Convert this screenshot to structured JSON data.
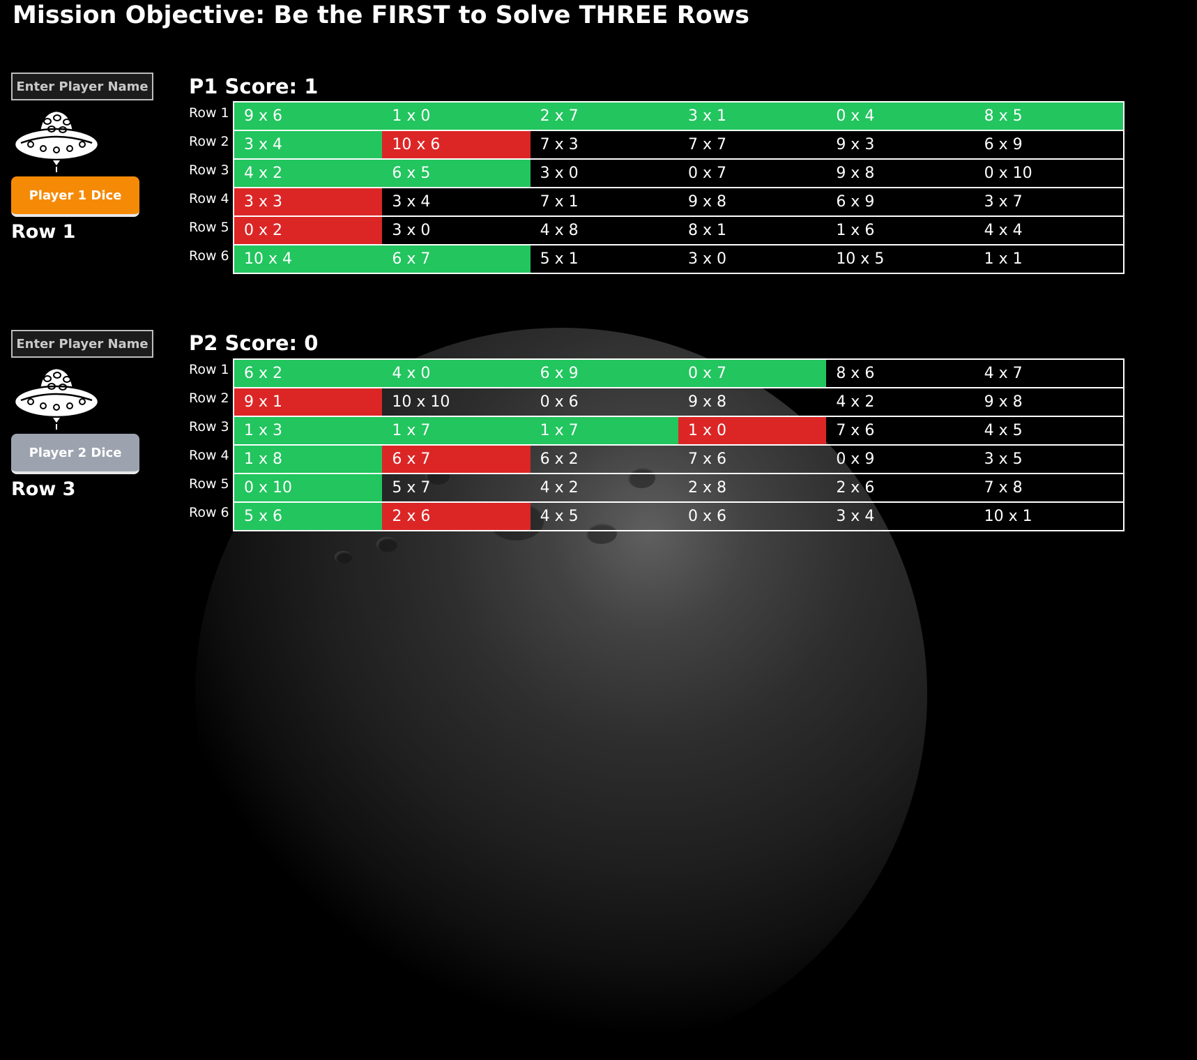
{
  "title": "Mission Objective: Be the FIRST to Solve THREE Rows",
  "colors": {
    "correct": "#22c55e",
    "wrong": "#dc2626",
    "p1_dice": "#f58a07",
    "p2_dice": "#9ca3af"
  },
  "players": [
    {
      "name_placeholder": "Enter Player Name",
      "dice_label": "Player 1 Dice",
      "current_row": "Row 1",
      "score_label": "P1 Score: 1",
      "row_labels": [
        "Row 1",
        "Row 2",
        "Row 3",
        "Row 4",
        "Row 5",
        "Row 6"
      ],
      "grid": [
        [
          {
            "t": "9 x 6",
            "s": "green"
          },
          {
            "t": "1 x 0",
            "s": "green"
          },
          {
            "t": "2 x 7",
            "s": "green"
          },
          {
            "t": "3 x 1",
            "s": "green"
          },
          {
            "t": "0 x 4",
            "s": "green"
          },
          {
            "t": "8 x 5",
            "s": "green"
          }
        ],
        [
          {
            "t": "3 x 4",
            "s": "green"
          },
          {
            "t": "10 x 6",
            "s": "red"
          },
          {
            "t": "7 x 3",
            "s": "none"
          },
          {
            "t": "7 x 7",
            "s": "none"
          },
          {
            "t": "9 x 3",
            "s": "none"
          },
          {
            "t": "6 x 9",
            "s": "none"
          }
        ],
        [
          {
            "t": "4 x 2",
            "s": "green"
          },
          {
            "t": "6 x 5",
            "s": "green"
          },
          {
            "t": "3 x 0",
            "s": "none"
          },
          {
            "t": "0 x 7",
            "s": "none"
          },
          {
            "t": "9 x 8",
            "s": "none"
          },
          {
            "t": "0 x 10",
            "s": "none"
          }
        ],
        [
          {
            "t": "3 x 3",
            "s": "red"
          },
          {
            "t": "3 x 4",
            "s": "none"
          },
          {
            "t": "7 x 1",
            "s": "none"
          },
          {
            "t": "9 x 8",
            "s": "none"
          },
          {
            "t": "6 x 9",
            "s": "none"
          },
          {
            "t": "3 x 7",
            "s": "none"
          }
        ],
        [
          {
            "t": "0 x 2",
            "s": "red"
          },
          {
            "t": "3 x 0",
            "s": "none"
          },
          {
            "t": "4 x 8",
            "s": "none"
          },
          {
            "t": "8 x 1",
            "s": "none"
          },
          {
            "t": "1 x 6",
            "s": "none"
          },
          {
            "t": "4 x 4",
            "s": "none"
          }
        ],
        [
          {
            "t": "10 x 4",
            "s": "green"
          },
          {
            "t": "6 x 7",
            "s": "green"
          },
          {
            "t": "5 x 1",
            "s": "none"
          },
          {
            "t": "3 x 0",
            "s": "none"
          },
          {
            "t": "10 x 5",
            "s": "none"
          },
          {
            "t": "1 x 1",
            "s": "none"
          }
        ]
      ]
    },
    {
      "name_placeholder": "Enter Player Name",
      "dice_label": "Player 2 Dice",
      "current_row": "Row 3",
      "score_label": "P2 Score: 0",
      "row_labels": [
        "Row 1",
        "Row 2",
        "Row 3",
        "Row 4",
        "Row 5",
        "Row 6"
      ],
      "grid": [
        [
          {
            "t": "6 x 2",
            "s": "green"
          },
          {
            "t": "4 x 0",
            "s": "green"
          },
          {
            "t": "6 x 9",
            "s": "green"
          },
          {
            "t": "0 x 7",
            "s": "green"
          },
          {
            "t": "8 x 6",
            "s": "none"
          },
          {
            "t": "4 x 7",
            "s": "none"
          }
        ],
        [
          {
            "t": "9 x 1",
            "s": "red"
          },
          {
            "t": "10 x 10",
            "s": "none"
          },
          {
            "t": "0 x 6",
            "s": "none"
          },
          {
            "t": "9 x 8",
            "s": "none"
          },
          {
            "t": "4 x 2",
            "s": "none"
          },
          {
            "t": "9 x 8",
            "s": "none"
          }
        ],
        [
          {
            "t": "1 x 3",
            "s": "green"
          },
          {
            "t": "1 x 7",
            "s": "green"
          },
          {
            "t": "1 x 7",
            "s": "green"
          },
          {
            "t": "1 x 0",
            "s": "red"
          },
          {
            "t": "7 x 6",
            "s": "none"
          },
          {
            "t": "4 x 5",
            "s": "none"
          }
        ],
        [
          {
            "t": "1 x 8",
            "s": "green"
          },
          {
            "t": "6 x 7",
            "s": "red"
          },
          {
            "t": "6 x 2",
            "s": "none"
          },
          {
            "t": "7 x 6",
            "s": "none"
          },
          {
            "t": "0 x 9",
            "s": "none"
          },
          {
            "t": "3 x 5",
            "s": "none"
          }
        ],
        [
          {
            "t": "0 x 10",
            "s": "green"
          },
          {
            "t": "5 x 7",
            "s": "none"
          },
          {
            "t": "4 x 2",
            "s": "none"
          },
          {
            "t": "2 x 8",
            "s": "none"
          },
          {
            "t": "2 x 6",
            "s": "none"
          },
          {
            "t": "7 x 8",
            "s": "none"
          }
        ],
        [
          {
            "t": "5 x 6",
            "s": "green"
          },
          {
            "t": "2 x 6",
            "s": "red"
          },
          {
            "t": "4 x 5",
            "s": "none"
          },
          {
            "t": "0 x 6",
            "s": "none"
          },
          {
            "t": "3 x 4",
            "s": "none"
          },
          {
            "t": "10 x 1",
            "s": "none"
          }
        ]
      ]
    }
  ]
}
